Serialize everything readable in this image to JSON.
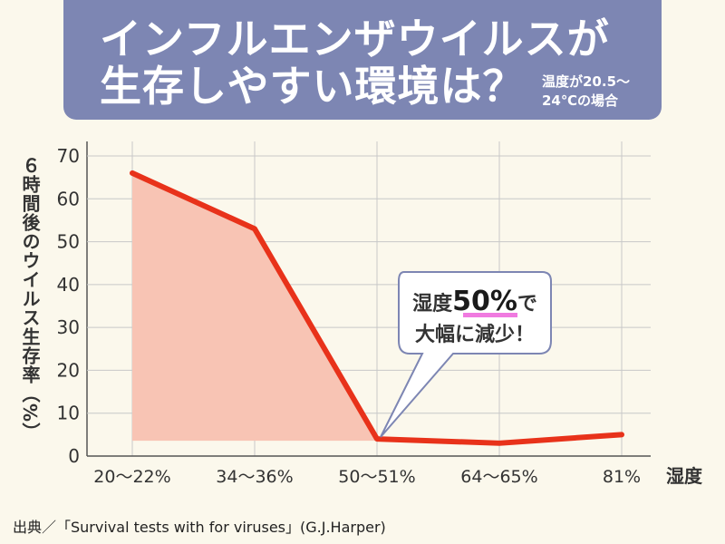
{
  "title": {
    "line1": "インフルエンザウイルスが",
    "line2": "生存しやすい環境は？",
    "sub1": "温度が20.5〜",
    "sub2": "24℃の場合"
  },
  "source": "出典／「Survival tests with for viruses」(G.J.Harper)",
  "callout": {
    "line1_prefix": "湿度",
    "line1_highlight": "50%",
    "line1_suffix": "で",
    "line2": "大幅に減少！"
  },
  "chart_data": {
    "type": "line",
    "categories": [
      "20〜22%",
      "34〜36%",
      "50〜51%",
      "64〜65%",
      "81%"
    ],
    "values": [
      66,
      53,
      4,
      3,
      5
    ],
    "xlabel": "湿度",
    "ylabel": "６時間後のウイルス生存率（%）",
    "ylim": [
      0,
      70
    ],
    "yticks": [
      0,
      10,
      20,
      30,
      40,
      50,
      60,
      70
    ],
    "grid": true,
    "shaded_range": [
      "20〜22%",
      "50〜51%"
    ],
    "colors": {
      "line": "#e8321a",
      "fill": "#f8c4b4",
      "grid": "#c8c8c8"
    }
  }
}
